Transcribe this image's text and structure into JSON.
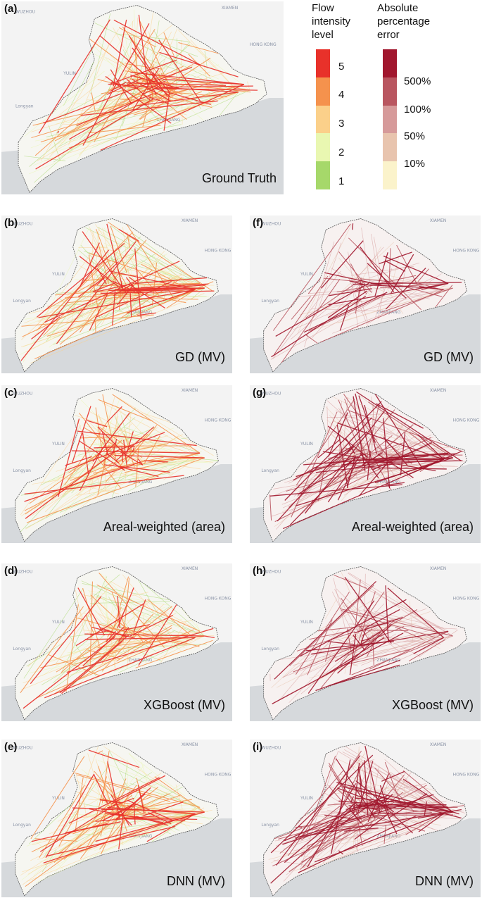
{
  "panels": [
    {
      "id": "a",
      "label": "(a)",
      "title": "Ground Truth",
      "kind": "flow",
      "density": 1.0
    },
    {
      "id": "b",
      "label": "(b)",
      "title": "GD (MV)",
      "kind": "flow",
      "density": 0.95
    },
    {
      "id": "c",
      "label": "(c)",
      "title": "Areal-weighted (area)",
      "kind": "flow",
      "density": 0.8
    },
    {
      "id": "d",
      "label": "(d)",
      "title": "XGBoost (MV)",
      "kind": "flow",
      "density": 0.75
    },
    {
      "id": "e",
      "label": "(e)",
      "title": "DNN (MV)",
      "kind": "flow",
      "density": 0.9
    },
    {
      "id": "f",
      "label": "(f)",
      "title": "GD (MV)",
      "kind": "error",
      "density": 0.45
    },
    {
      "id": "g",
      "label": "(g)",
      "title": "Areal-weighted (area)",
      "kind": "error",
      "density": 0.9
    },
    {
      "id": "h",
      "label": "(h)",
      "title": "XGBoost (MV)",
      "kind": "error",
      "density": 0.6
    },
    {
      "id": "i",
      "label": "(i)",
      "title": "DNN (MV)",
      "kind": "error",
      "density": 1.0
    }
  ],
  "legend_flow": {
    "title": "Flow\nintensity\nlevel",
    "levels": [
      {
        "label": "5",
        "color": "#e8312a"
      },
      {
        "label": "4",
        "color": "#f5924d"
      },
      {
        "label": "3",
        "color": "#fbd08a"
      },
      {
        "label": "2",
        "color": "#e9f7b1"
      },
      {
        "label": "1",
        "color": "#a6d86a"
      }
    ]
  },
  "legend_error": {
    "title": "Absolute\npercentage\nerror",
    "colors": [
      "#a1172e",
      "#b95660",
      "#d69a9a",
      "#e8c4ae",
      "#fbf3cb"
    ],
    "labels": [
      "500%",
      "100%",
      "50%",
      "10%"
    ]
  },
  "map_labels": [
    "WUZHOU",
    "YULIN",
    "Longyan",
    "XIAMEN",
    "HONG KONG",
    "ZHANJIANG"
  ]
}
